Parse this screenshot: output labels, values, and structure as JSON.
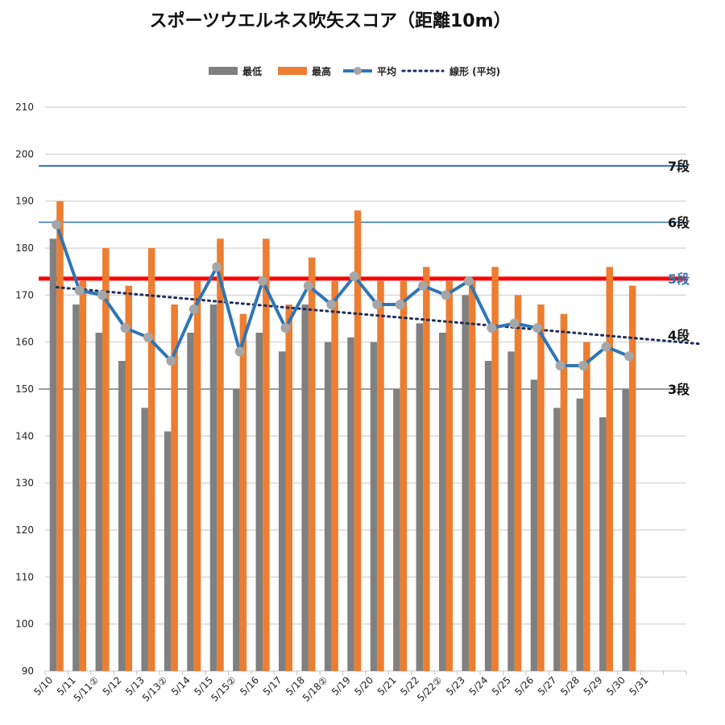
{
  "chart_data": {
    "type": "bar",
    "title": "スポーツウエルネス吹矢スコア（距離10m）",
    "categories": [
      "5/10",
      "5/11",
      "5/11②",
      "5/12",
      "5/13",
      "5/13②",
      "5/14",
      "5/15",
      "5/15②",
      "5/16",
      "5/17",
      "5/18",
      "5/18②",
      "5/19",
      "5/20",
      "5/21",
      "5/22",
      "5/22②",
      "5/23",
      "5/24",
      "5/25",
      "5/26",
      "5/27",
      "5/28",
      "5/29",
      "5/30",
      "5/31"
    ],
    "extra_slots": 1,
    "series": [
      {
        "name": "最低",
        "kind": "bar",
        "color": "#808080",
        "values": [
          182,
          168,
          162,
          156,
          146,
          141,
          162,
          168,
          150,
          162,
          158,
          168,
          160,
          161,
          160,
          150,
          164,
          162,
          170,
          156,
          158,
          152,
          146,
          148,
          144,
          150,
          null
        ]
      },
      {
        "name": "最高",
        "kind": "bar",
        "color": "#ED7D31",
        "values": [
          190,
          173,
          180,
          172,
          180,
          168,
          173,
          182,
          166,
          182,
          168,
          178,
          173,
          188,
          173,
          173,
          176,
          173,
          173,
          176,
          170,
          168,
          166,
          160,
          176,
          172,
          null
        ]
      },
      {
        "name": "平均",
        "kind": "line",
        "color": "#2E75B6",
        "values": [
          185,
          171,
          170,
          163,
          161,
          156,
          167,
          176,
          158,
          173,
          163,
          172,
          168,
          174,
          168,
          168,
          172,
          170,
          173,
          163,
          164,
          163,
          155,
          155,
          159,
          157,
          null
        ]
      },
      {
        "name": "線形 (平均)",
        "kind": "trend",
        "color": "#1F2D5A"
      }
    ],
    "ylim": [
      90,
      210
    ],
    "yticks": [
      90,
      100,
      110,
      120,
      130,
      140,
      150,
      160,
      170,
      180,
      190,
      200,
      210
    ],
    "grid": true,
    "legend_position": "top",
    "levels": [
      {
        "label": "7段",
        "value": 197.5,
        "color": "#2E75B6",
        "text_color": "#111111",
        "width": 2
      },
      {
        "label": "6段",
        "value": 185.5,
        "color": "#2E75B6",
        "text_color": "#111111",
        "width": 1.5
      },
      {
        "label": "5段",
        "value": 173.5,
        "color": "#FF0000",
        "text_color": "#2E75B6",
        "width": 5
      },
      {
        "label": "4段",
        "value": 161.5,
        "color": null,
        "text_color": "#111111",
        "width": 0
      },
      {
        "label": "3段",
        "value": 150,
        "color": "#808080",
        "text_color": "#111111",
        "width": 1.5
      }
    ]
  }
}
